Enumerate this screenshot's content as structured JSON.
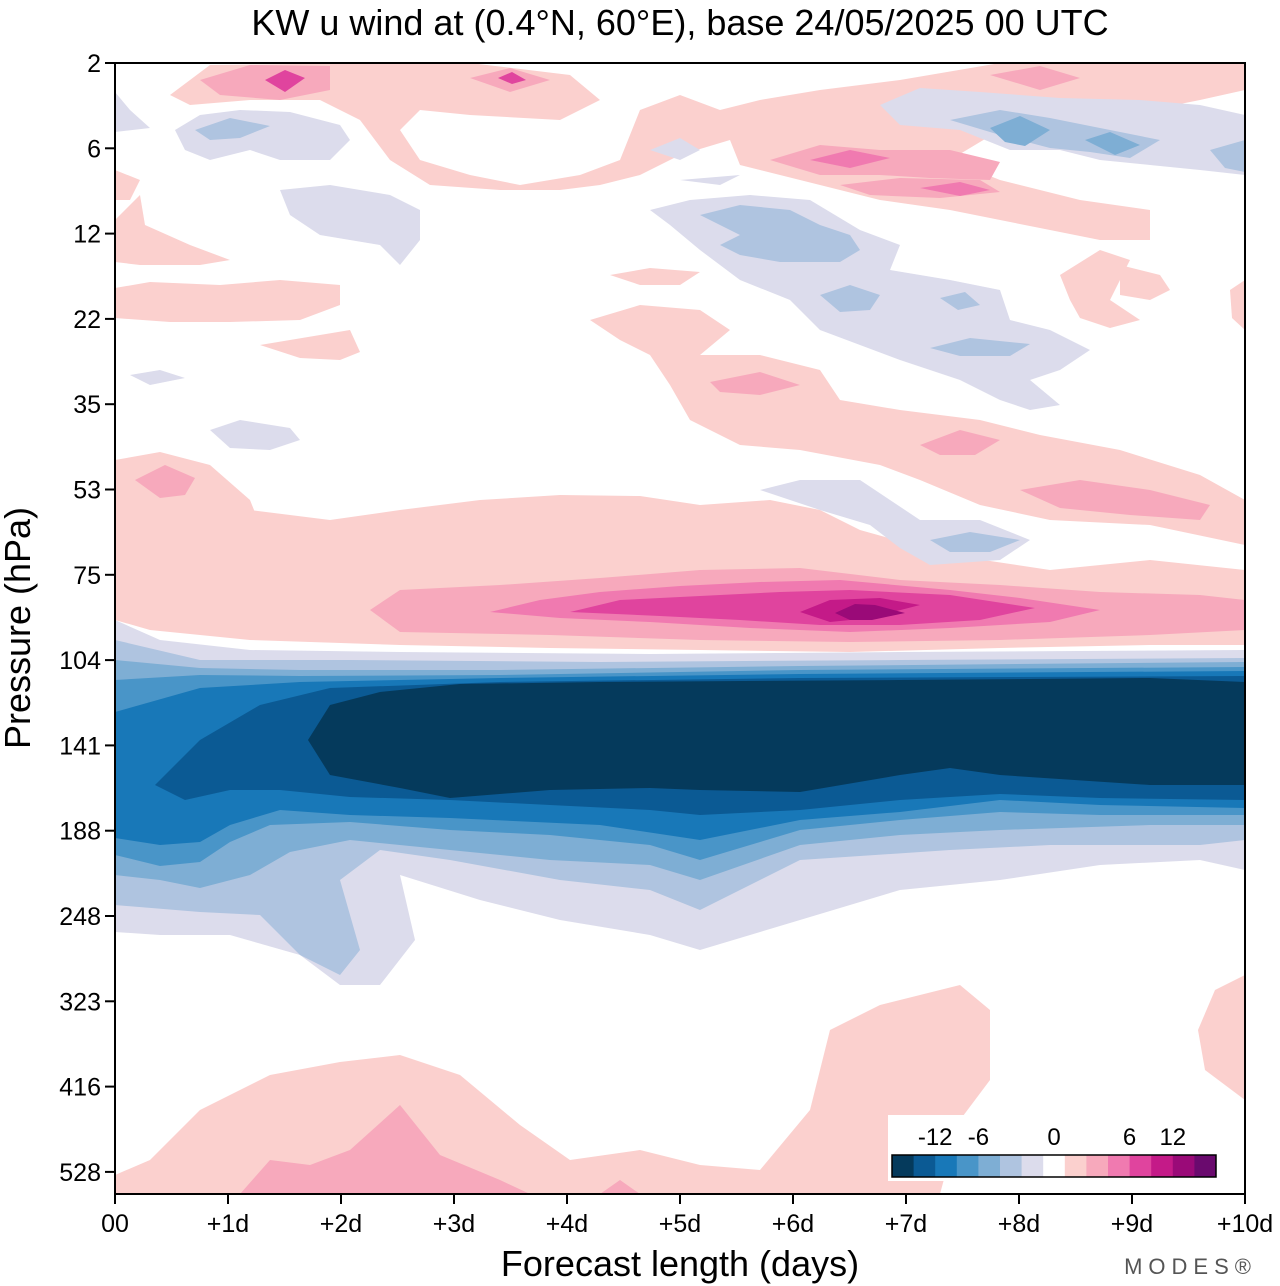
{
  "chart_data": {
    "type": "heatmap",
    "title": "KW u wind at (0.4°N, 60°E),  base 24/05/2025  00 UTC",
    "xlabel": "Forecast length (days)",
    "ylabel": "Pressure (hPa)",
    "x_ticks": [
      "00",
      "+1d",
      "+2d",
      "+3d",
      "+4d",
      "+5d",
      "+6d",
      "+7d",
      "+8d",
      "+9d",
      "+10d"
    ],
    "y_ticks": [
      "2",
      "6",
      "12",
      "22",
      "35",
      "53",
      "75",
      "104",
      "141",
      "188",
      "248",
      "323",
      "416",
      "528"
    ],
    "xlim": [
      0,
      10
    ],
    "colorbar": {
      "tick_labels": [
        "-12",
        "-6",
        "0",
        "6",
        "12"
      ],
      "levels": [
        -15,
        -13.5,
        -12,
        -10.5,
        -9,
        -7.5,
        -6,
        -4.5,
        -3,
        -1.5,
        1.5,
        3,
        4.5,
        6,
        7.5,
        9,
        10.5,
        12,
        13.5,
        15
      ],
      "colors": [
        "#053a5c",
        "#0b5a94",
        "#1878b8",
        "#4995c8",
        "#7eaed4",
        "#afc4e0",
        "#dcdcec",
        "#ffffff",
        "#fbd0ce",
        "#f7a9bc",
        "#f07ab0",
        "#e0449e",
        "#c41a88",
        "#9a0a78",
        "#6a0a6e"
      ]
    },
    "features": [
      {
        "region": "easterly jet core",
        "pressure_hPa": [
          120,
          170
        ],
        "forecast_days": [
          1.7,
          10
        ],
        "u_ms": "< -13.5"
      },
      {
        "region": "westerly maximum",
        "pressure_hPa": 88,
        "forecast_days": [
          4,
          8
        ],
        "u_ms": 10
      }
    ]
  },
  "branding": "MODES®"
}
